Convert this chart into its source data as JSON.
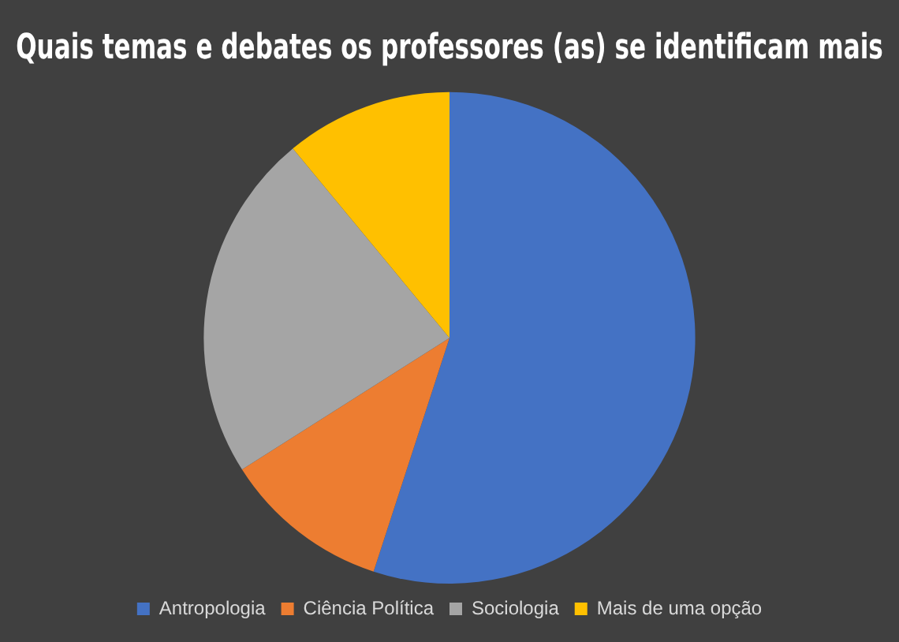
{
  "chart_data": {
    "type": "pie",
    "title": "Quais temas e debates os professores (as) se identificam mais",
    "categories": [
      "Antropologia",
      "Ciência Política",
      "Sociologia",
      "Mais de uma opção"
    ],
    "values": [
      55,
      11,
      23,
      11
    ],
    "colors": [
      "#4472c4",
      "#ed7d31",
      "#a5a5a5",
      "#ffc000"
    ],
    "legend": "bottom"
  }
}
